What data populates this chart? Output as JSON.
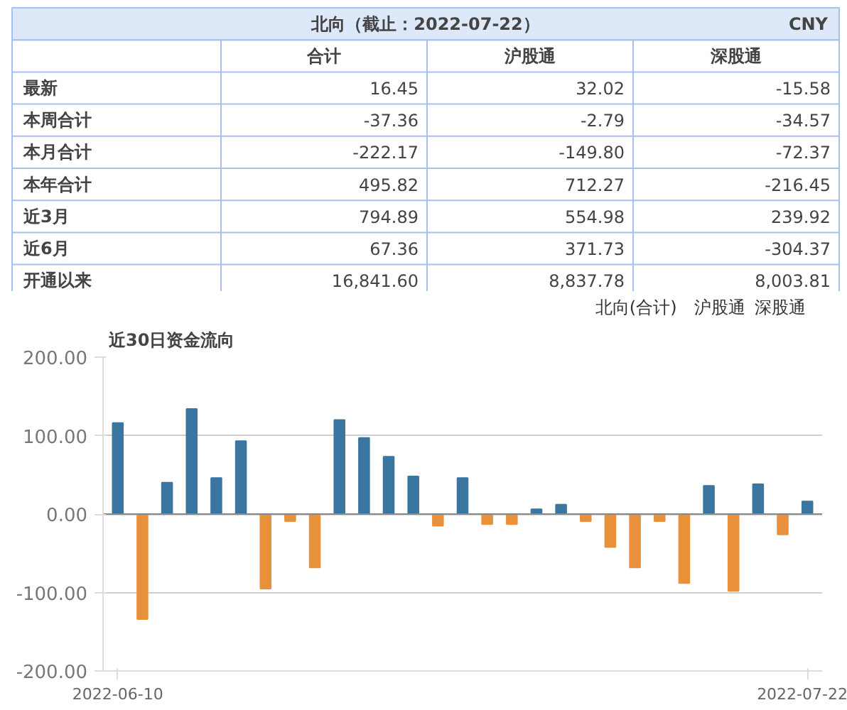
{
  "chart_data": [
    {
      "type": "other",
      "title": "北向（截止：2022-07-22）",
      "annotations": [
        "CNY"
      ],
      "categories": [
        "合计",
        "沪股通",
        "深股通"
      ],
      "y_categories": [
        "最新",
        "本周合计",
        "本月合计",
        "本年合计",
        "近3月",
        "近6月",
        "开通以来"
      ],
      "cell_labels": [
        [
          "16.45",
          "32.02",
          "-15.58"
        ],
        [
          "-37.36",
          "-2.79",
          "-34.57"
        ],
        [
          "-222.17",
          "-149.80",
          "-72.37"
        ],
        [
          "495.82",
          "712.27",
          "-216.45"
        ],
        [
          "794.89",
          "554.98",
          "239.92"
        ],
        [
          "67.36",
          "371.73",
          "-304.37"
        ],
        [
          "16,841.60",
          "8,837.78",
          "8,003.81"
        ]
      ]
    },
    {
      "type": "bar",
      "title": "近30日资金流向",
      "annotations": [
        "北向(合计)",
        "沪股通",
        "深股通"
      ],
      "categories": [
        "2022-06-10",
        null,
        null,
        null,
        null,
        null,
        null,
        null,
        null,
        null,
        null,
        null,
        null,
        null,
        null,
        null,
        null,
        null,
        null,
        null,
        null,
        null,
        null,
        null,
        null,
        null,
        null,
        null,
        "2022-07-22"
      ],
      "values": [
        116,
        -134,
        40,
        134,
        46,
        93,
        -95,
        -9,
        -68,
        120,
        97,
        73,
        48,
        -15,
        46,
        -13,
        -13,
        6,
        12,
        -9,
        -42,
        -68,
        -9,
        -88,
        36,
        -98,
        38,
        -26,
        16
      ],
      "colors": [
        "#3a76a0",
        "#e8913a",
        "#3a76a0",
        "#3a76a0",
        "#3a76a0",
        "#3a76a0",
        "#e8913a",
        "#e8913a",
        "#e8913a",
        "#3a76a0",
        "#3a76a0",
        "#3a76a0",
        "#3a76a0",
        "#e8913a",
        "#3a76a0",
        "#e8913a",
        "#e8913a",
        "#3a76a0",
        "#3a76a0",
        "#e8913a",
        "#e8913a",
        "#e8913a",
        "#e8913a",
        "#e8913a",
        "#3a76a0",
        "#e8913a",
        "#3a76a0",
        "#e8913a",
        "#3a76a0"
      ],
      "ylim": [
        -200,
        200
      ],
      "yticks": [
        {
          "value": -200,
          "label": "-200.00"
        },
        {
          "value": -100,
          "label": "-100.00"
        },
        {
          "value": 0,
          "label": "0.00"
        },
        {
          "value": 100,
          "label": "100.00"
        },
        {
          "value": 200,
          "label": "200.00"
        }
      ],
      "grid": "y"
    }
  ]
}
